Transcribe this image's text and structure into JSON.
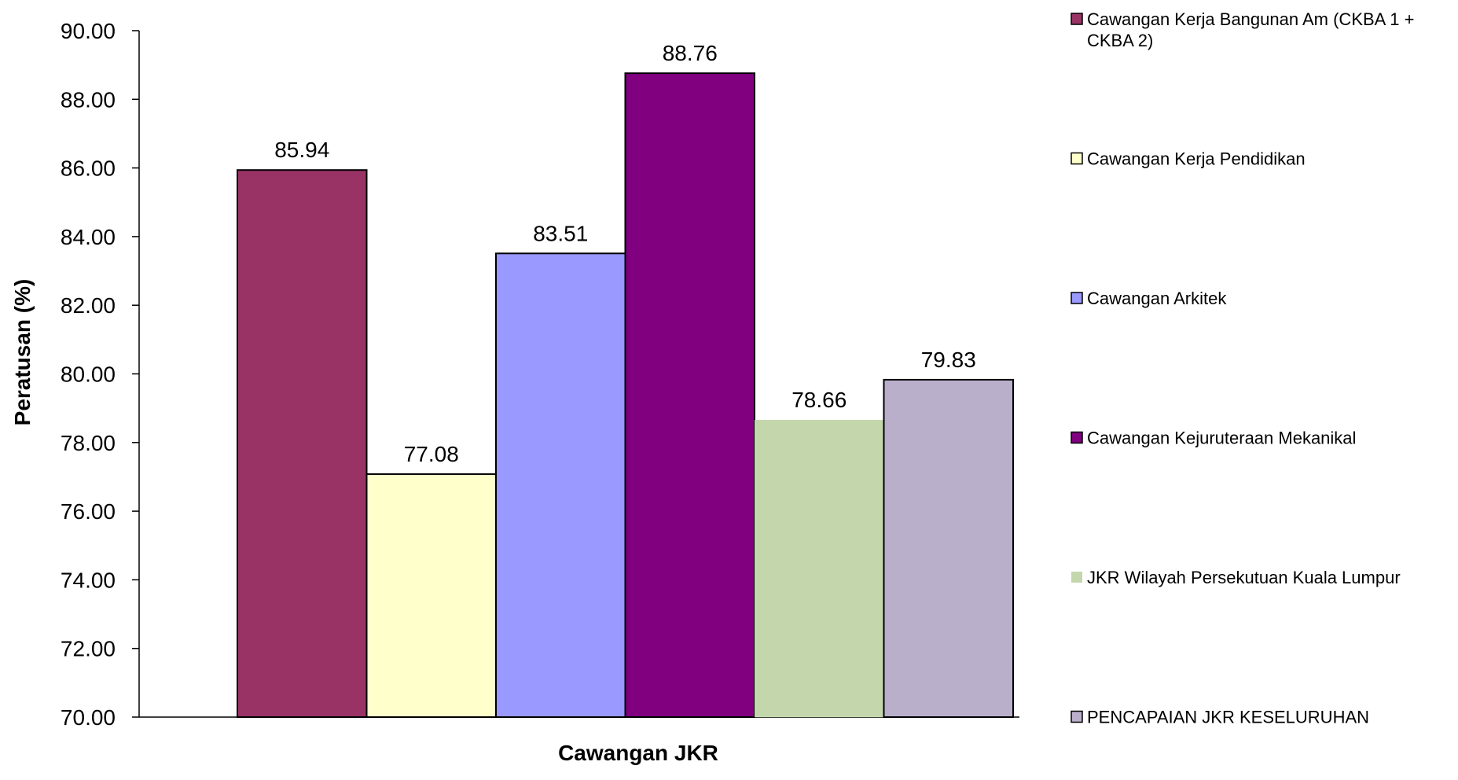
{
  "chart_data": {
    "type": "bar",
    "xlabel": "Cawangan JKR",
    "ylabel": "Peratusan (%)",
    "ylim": [
      70,
      90
    ],
    "yticks": [
      "70.00",
      "72.00",
      "74.00",
      "76.00",
      "78.00",
      "80.00",
      "82.00",
      "84.00",
      "86.00",
      "88.00",
      "90.00"
    ],
    "grid": false,
    "legend_position": "right",
    "series": [
      {
        "name": "Cawangan Kerja Bangunan Am (CKBA 1 + CKBA 2)",
        "legend_lines": [
          "Cawangan Kerja Bangunan Am (CKBA 1 +",
          "CKBA 2)"
        ],
        "value": 85.94,
        "label": "85.94",
        "color": "#993366",
        "outlined": true
      },
      {
        "name": "Cawangan Kerja Pendidikan",
        "legend_lines": [
          "Cawangan Kerja Pendidikan"
        ],
        "value": 77.08,
        "label": "77.08",
        "color": "#FFFFCC",
        "outlined": true
      },
      {
        "name": "Cawangan Arkitek",
        "legend_lines": [
          "Cawangan Arkitek"
        ],
        "value": 83.51,
        "label": "83.51",
        "color": "#9999FF",
        "outlined": true
      },
      {
        "name": "Cawangan Kejuruteraan Mekanikal",
        "legend_lines": [
          "Cawangan Kejuruteraan Mekanikal"
        ],
        "value": 88.76,
        "label": "88.76",
        "color": "#800080",
        "outlined": true
      },
      {
        "name": "JKR Wilayah Persekutuan Kuala Lumpur",
        "legend_lines": [
          "JKR Wilayah Persekutuan Kuala Lumpur"
        ],
        "value": 78.66,
        "label": "78.66",
        "color": "#C4D7AC",
        "outlined": false
      },
      {
        "name": "PENCAPAIAN JKR KESELURUHAN",
        "legend_lines": [
          "PENCAPAIAN JKR KESELURUHAN"
        ],
        "value": 79.83,
        "label": "79.83",
        "color": "#B9AFCB",
        "outlined": true
      }
    ]
  }
}
